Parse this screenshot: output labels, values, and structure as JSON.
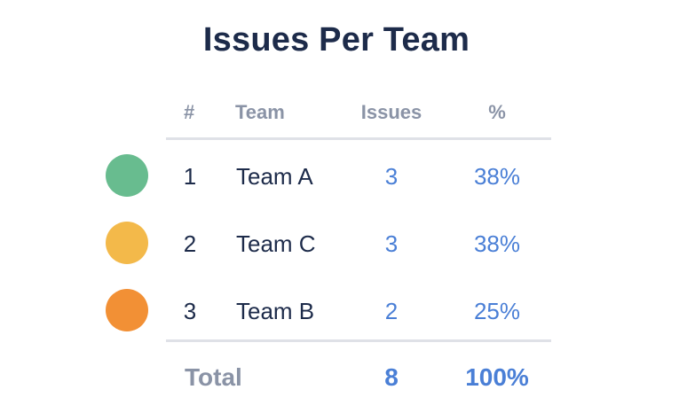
{
  "title": "Issues Per Team",
  "table": {
    "headers": {
      "rank": "#",
      "team": "Team",
      "issues": "Issues",
      "percent": "%"
    },
    "rows": [
      {
        "rank": "1",
        "team": "Team A",
        "issues": "3",
        "percent": "38%",
        "color": "#68bc8f"
      },
      {
        "rank": "2",
        "team": "Team C",
        "issues": "3",
        "percent": "38%",
        "color": "#f3b94a"
      },
      {
        "rank": "3",
        "team": "Team B",
        "issues": "2",
        "percent": "25%",
        "color": "#f29035"
      }
    ],
    "total": {
      "label": "Total",
      "issues": "8",
      "percent": "100%"
    }
  }
}
